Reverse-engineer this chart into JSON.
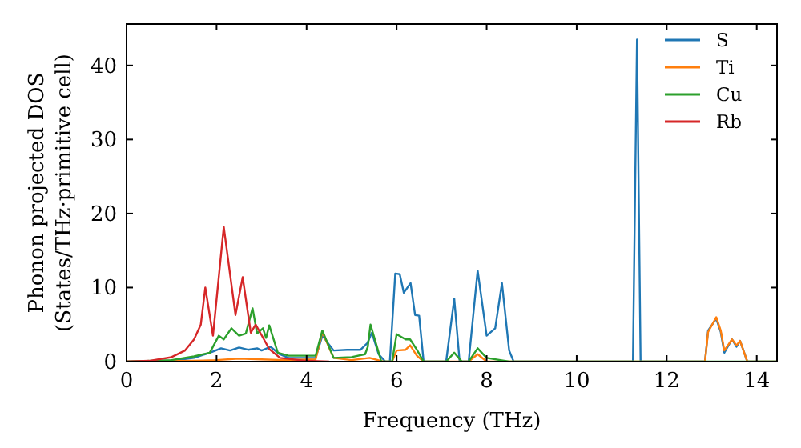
{
  "chart_data": {
    "type": "line",
    "xlabel": "Frequency (THz)",
    "ylabel": "Phonon projected DOS\n(States/THz·primitive cell)",
    "xlim": [
      0,
      14.45
    ],
    "ylim": [
      0,
      45.6
    ],
    "xticks": [
      0,
      2,
      4,
      6,
      8,
      10,
      12,
      14
    ],
    "yticks": [
      0,
      10,
      20,
      30,
      40
    ],
    "legend": "top right",
    "grid": false,
    "marker": "none",
    "line_style": "solid",
    "series": [
      {
        "name": "S",
        "color": "#1f77b4",
        "x": [
          0,
          1,
          1.5,
          1.9,
          2.1,
          2.3,
          2.5,
          2.7,
          2.9,
          3.0,
          3.2,
          3.4,
          3.6,
          4.2,
          4.35,
          4.6,
          4.9,
          5.2,
          5.35,
          5.45,
          5.6,
          5.75,
          5.85,
          5.97,
          6.07,
          6.16,
          6.31,
          6.41,
          6.5,
          6.6,
          7.1,
          7.28,
          7.4,
          7.6,
          7.8,
          8.0,
          8.19,
          8.34,
          8.5,
          8.6,
          11.25,
          11.34,
          11.42,
          12.85,
          12.92,
          13.1,
          13.2,
          13.28,
          13.45,
          13.55,
          13.63,
          13.79,
          14.45
        ],
        "values": [
          0,
          0.1,
          0.5,
          1.3,
          1.8,
          1.5,
          1.9,
          1.6,
          1.8,
          1.5,
          2.0,
          1.0,
          0.5,
          0.5,
          3.5,
          1.5,
          1.6,
          1.6,
          2.5,
          3.9,
          1.0,
          0,
          0,
          11.9,
          11.8,
          9.3,
          10.6,
          6.3,
          6.2,
          0,
          0,
          8.5,
          0,
          0,
          12.3,
          3.5,
          4.5,
          10.6,
          1.5,
          0,
          0,
          43.5,
          0,
          0,
          4.2,
          5.8,
          4,
          1.2,
          3,
          2,
          2.8,
          0,
          0
        ]
      },
      {
        "name": "Ti",
        "color": "#ff7f0e",
        "x": [
          0,
          1.5,
          2.0,
          2.5,
          3.0,
          3.5,
          4.2,
          4.35,
          4.6,
          5.0,
          5.4,
          5.7,
          5.9,
          6.0,
          6.2,
          6.3,
          6.45,
          6.6,
          7.6,
          7.8,
          8.0,
          12.85,
          12.92,
          13.1,
          13.2,
          13.28,
          13.45,
          13.55,
          13.63,
          13.79,
          14.45
        ],
        "values": [
          0,
          0.1,
          0.2,
          0.4,
          0.3,
          0.2,
          0.3,
          4.0,
          0.5,
          0.2,
          0.5,
          0,
          0,
          1.5,
          1.6,
          2.2,
          0.8,
          0,
          0,
          1.0,
          0,
          0,
          4.0,
          6.0,
          4.2,
          1.5,
          3,
          2.2,
          2.8,
          0,
          0
        ]
      },
      {
        "name": "Cu",
        "color": "#2ca02c",
        "x": [
          0,
          1,
          1.5,
          1.85,
          2.05,
          2.16,
          2.33,
          2.5,
          2.65,
          2.8,
          2.9,
          3.03,
          3.1,
          3.17,
          3.36,
          3.6,
          4.2,
          4.35,
          4.6,
          5.0,
          5.3,
          5.36,
          5.42,
          5.66,
          5.9,
          6.0,
          6.2,
          6.3,
          6.45,
          6.6,
          7.1,
          7.28,
          7.45,
          7.6,
          7.8,
          8.0,
          8.5,
          14.45
        ],
        "values": [
          0,
          0.2,
          0.7,
          1.2,
          3.5,
          3.0,
          4.5,
          3.5,
          3.8,
          7.2,
          3.8,
          4.5,
          3.2,
          4.9,
          1.2,
          0.8,
          0.8,
          4.2,
          0.5,
          0.6,
          1.0,
          2.0,
          5.0,
          0,
          0,
          3.7,
          3.0,
          3.0,
          1.6,
          0,
          0,
          1.2,
          0,
          0,
          1.8,
          0.5,
          0,
          0
        ]
      },
      {
        "name": "Rb",
        "color": "#d62728",
        "x": [
          0,
          0.5,
          1.0,
          1.3,
          1.5,
          1.65,
          1.75,
          1.92,
          2.16,
          2.42,
          2.58,
          2.76,
          2.87,
          3.17,
          3.41,
          4.0,
          4.5
        ],
        "values": [
          0,
          0.1,
          0.6,
          1.5,
          3,
          5,
          10,
          3.5,
          18.2,
          6.3,
          11.4,
          3.9,
          5,
          1.7,
          0.5,
          0.1,
          0
        ]
      }
    ]
  }
}
